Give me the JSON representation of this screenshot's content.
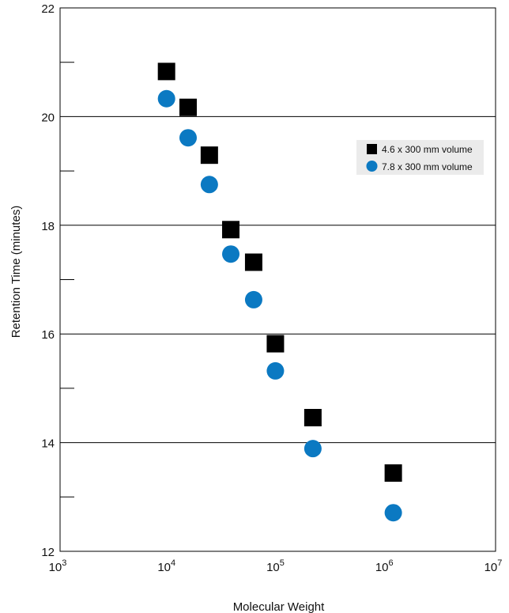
{
  "chart_data": {
    "type": "scatter",
    "title": "",
    "xlabel": "Molecular Weight",
    "ylabel": "Retention Time (minutes)",
    "x_scale": "log",
    "xlim": [
      1000,
      10000000
    ],
    "ylim": [
      12,
      22
    ],
    "x_tick_values": [
      1000,
      10000,
      100000,
      1000000,
      10000000
    ],
    "x_tick_labels": [
      {
        "base": "10",
        "exp": "3"
      },
      {
        "base": "10",
        "exp": "4"
      },
      {
        "base": "10",
        "exp": "5"
      },
      {
        "base": "10",
        "exp": "6"
      },
      {
        "base": "10",
        "exp": "7"
      }
    ],
    "y_ticks": [
      12,
      14,
      16,
      18,
      20,
      22
    ],
    "y_minor_ticks": [
      13,
      15,
      17,
      19,
      21
    ],
    "y_gridlines": [
      14,
      16,
      18,
      20
    ],
    "legend_position": "top-right",
    "series": [
      {
        "name": "4.6 x 300 mm volume",
        "marker": "square",
        "color": "#000000",
        "points": [
          {
            "x": 9500,
            "y": 20.83
          },
          {
            "x": 15000,
            "y": 20.17
          },
          {
            "x": 23500,
            "y": 19.29
          },
          {
            "x": 37000,
            "y": 17.92
          },
          {
            "x": 60000,
            "y": 17.32
          },
          {
            "x": 95000,
            "y": 15.82
          },
          {
            "x": 210000,
            "y": 14.46
          },
          {
            "x": 1150000,
            "y": 13.44
          }
        ]
      },
      {
        "name": "7.8 x 300 mm volume",
        "marker": "circle",
        "color": "#0b79c2",
        "points": [
          {
            "x": 9500,
            "y": 20.33
          },
          {
            "x": 15000,
            "y": 19.61
          },
          {
            "x": 23500,
            "y": 18.75
          },
          {
            "x": 37000,
            "y": 17.47
          },
          {
            "x": 60000,
            "y": 16.63
          },
          {
            "x": 95000,
            "y": 15.32
          },
          {
            "x": 210000,
            "y": 13.89
          },
          {
            "x": 1150000,
            "y": 12.71
          }
        ]
      }
    ]
  }
}
